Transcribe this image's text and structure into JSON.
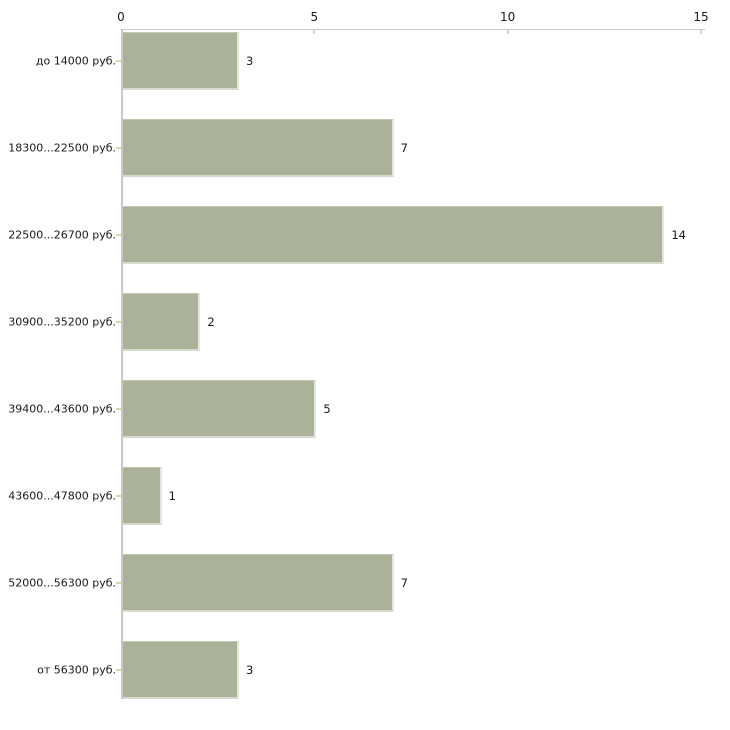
{
  "chart_data": {
    "type": "bar",
    "orientation": "horizontal",
    "title": "",
    "xlabel": "",
    "ylabel": "",
    "categories": [
      "до 14000 руб.",
      "18300...22500 руб.",
      "22500...26700 руб.",
      "30900...35200 руб.",
      "39400...43600 руб.",
      "43600...47800 руб.",
      "52000...56300 руб.",
      "от 56300 руб."
    ],
    "values": [
      3,
      7,
      14,
      2,
      5,
      1,
      7,
      3
    ],
    "xlim": [
      0,
      15
    ],
    "x_ticks": [
      0,
      5,
      10,
      15
    ],
    "grid": false,
    "legend": false,
    "colors": {
      "bar_fill": "#abb29a",
      "bar_edge_top": "#c3c7b0",
      "bar_edge_right": "#e6e8dd",
      "bar_edge_bottom": "#d8dacd",
      "axis_line": "#c8c8c8",
      "tick_mark": "#d8d9a8",
      "text": "#1a1a1a",
      "background": "#ffffff"
    }
  }
}
